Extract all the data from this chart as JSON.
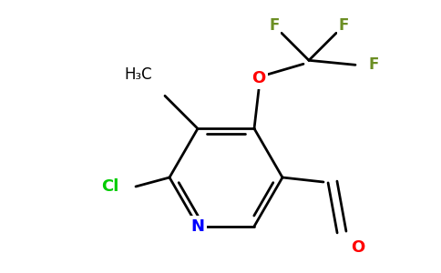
{
  "background_color": "#ffffff",
  "bond_color": "#000000",
  "atom_colors": {
    "N": "#0000ff",
    "O": "#ff0000",
    "Cl": "#00cc00",
    "F": "#6b8e23",
    "C": "#000000"
  },
  "figsize": [
    4.84,
    3.0
  ],
  "dpi": 100,
  "lw": 2.0,
  "font_size": 13
}
